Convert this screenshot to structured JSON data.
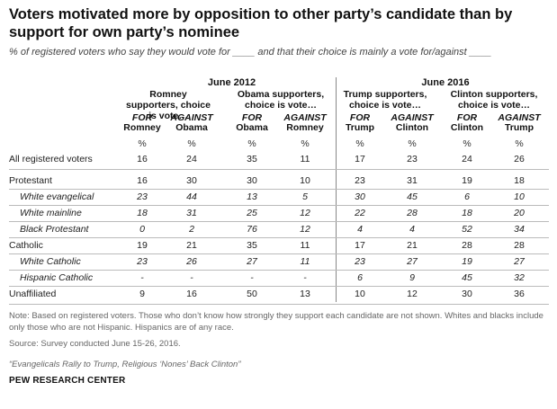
{
  "title": "Voters motivated more by opposition to other party’s candidate than by support for own party’s nominee",
  "subtitle": "% of registered voters who say they would vote for ____ and that their choice is mainly a vote for/against ____",
  "groups": [
    {
      "label": "June 2012",
      "subgroups": [
        {
          "label": "Romney supporters, choice is vote…",
          "cols": [
            {
              "top": "FOR",
              "bottom": "Romney"
            },
            {
              "top": "AGAINST",
              "bottom": "Obama"
            }
          ]
        },
        {
          "label": "Obama supporters, choice is vote…",
          "cols": [
            {
              "top": "FOR",
              "bottom": "Obama"
            },
            {
              "top": "AGAINST",
              "bottom": "Romney"
            }
          ]
        }
      ]
    },
    {
      "label": "June 2016",
      "subgroups": [
        {
          "label": "Trump supporters, choice is vote…",
          "cols": [
            {
              "top": "FOR",
              "bottom": "Trump"
            },
            {
              "top": "AGAINST",
              "bottom": "Clinton"
            }
          ]
        },
        {
          "label": "Clinton supporters, choice is vote…",
          "cols": [
            {
              "top": "FOR",
              "bottom": "Clinton"
            },
            {
              "top": "AGAINST",
              "bottom": "Trump"
            }
          ]
        }
      ]
    }
  ],
  "pct_symbol": "%",
  "rows": [
    {
      "label": "All registered voters",
      "sub": false,
      "values": [
        "16",
        "24",
        "35",
        "11",
        "17",
        "23",
        "24",
        "26"
      ]
    },
    {
      "label": "Protestant",
      "sub": false,
      "values": [
        "16",
        "30",
        "30",
        "10",
        "23",
        "31",
        "19",
        "18"
      ]
    },
    {
      "label": "White evangelical",
      "sub": true,
      "values": [
        "23",
        "44",
        "13",
        "5",
        "30",
        "45",
        "6",
        "10"
      ]
    },
    {
      "label": "White mainline",
      "sub": true,
      "values": [
        "18",
        "31",
        "25",
        "12",
        "22",
        "28",
        "18",
        "20"
      ]
    },
    {
      "label": "Black Protestant",
      "sub": true,
      "values": [
        "0",
        "2",
        "76",
        "12",
        "4",
        "4",
        "52",
        "34"
      ]
    },
    {
      "label": "Catholic",
      "sub": false,
      "values": [
        "19",
        "21",
        "35",
        "11",
        "17",
        "21",
        "28",
        "28"
      ]
    },
    {
      "label": "White Catholic",
      "sub": true,
      "values": [
        "23",
        "26",
        "27",
        "11",
        "23",
        "27",
        "19",
        "27"
      ]
    },
    {
      "label": "Hispanic Catholic",
      "sub": true,
      "values": [
        "-",
        "-",
        "-",
        "-",
        "6",
        "9",
        "45",
        "32"
      ]
    },
    {
      "label": "Unaffiliated",
      "sub": false,
      "values": [
        "9",
        "16",
        "50",
        "13",
        "10",
        "12",
        "30",
        "36"
      ]
    }
  ],
  "note": "Note: Based on registered voters. Those who don’t know how strongly they support each candidate are not shown. Whites and blacks include only those who are not Hispanic. Hispanics are of any race.",
  "source": "Source: Survey conducted June 15-26, 2016.",
  "report_title": "“Evangelicals Rally to Trump, Religious ‘Nones’ Back Clinton”",
  "organization": "PEW RESEARCH CENTER"
}
